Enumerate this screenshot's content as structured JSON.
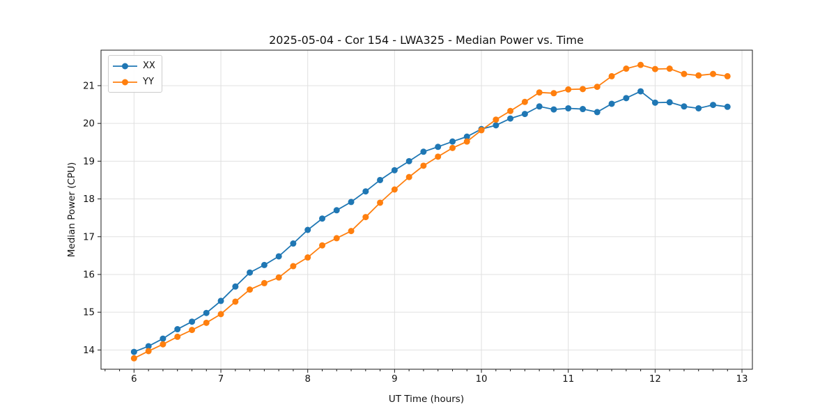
{
  "chart_data": {
    "type": "line",
    "title": "2025-05-04 - Cor 154 - LWA325 - Median Power vs. Time",
    "xlabel": "UT Time (hours)",
    "ylabel": "Median Power (CPU)",
    "grid": true,
    "legend_position": "upper left",
    "marker": "circle",
    "xlim": [
      5.62,
      13.12
    ],
    "ylim": [
      13.49,
      21.94
    ],
    "xticks": [
      6,
      7,
      8,
      9,
      10,
      11,
      12,
      13
    ],
    "yticks": [
      14,
      15,
      16,
      17,
      18,
      19,
      20,
      21
    ],
    "x_minor_step": 0.166667,
    "x": [
      6.0,
      6.167,
      6.333,
      6.5,
      6.667,
      6.833,
      7.0,
      7.167,
      7.333,
      7.5,
      7.667,
      7.833,
      8.0,
      8.167,
      8.333,
      8.5,
      8.667,
      8.833,
      9.0,
      9.167,
      9.333,
      9.5,
      9.667,
      9.833,
      10.0,
      10.167,
      10.333,
      10.5,
      10.667,
      10.833,
      11.0,
      11.167,
      11.333,
      11.5,
      11.667,
      11.833,
      12.0,
      12.167,
      12.333,
      12.5,
      12.667,
      12.833
    ],
    "series": [
      {
        "name": "XX",
        "color": "#1f77b4",
        "values": [
          13.95,
          14.1,
          14.3,
          14.55,
          14.75,
          14.98,
          15.3,
          15.68,
          16.05,
          16.25,
          16.48,
          16.82,
          17.18,
          17.48,
          17.7,
          17.92,
          18.2,
          18.5,
          18.76,
          19.0,
          19.25,
          19.38,
          19.52,
          19.65,
          19.85,
          19.95,
          20.13,
          20.25,
          20.45,
          20.37,
          20.4,
          20.38,
          20.3,
          20.52,
          20.67,
          20.85,
          20.55,
          20.56,
          20.45,
          20.4,
          20.49,
          20.44
        ]
      },
      {
        "name": "YY",
        "color": "#ff7f0e",
        "values": [
          13.78,
          13.97,
          14.15,
          14.35,
          14.53,
          14.72,
          14.95,
          15.28,
          15.6,
          15.77,
          15.92,
          16.22,
          16.45,
          16.77,
          16.96,
          17.15,
          17.52,
          17.9,
          18.25,
          18.58,
          18.88,
          19.12,
          19.35,
          19.52,
          19.82,
          20.1,
          20.33,
          20.57,
          20.82,
          20.8,
          20.9,
          20.91,
          20.97,
          21.25,
          21.45,
          21.55,
          21.44,
          21.45,
          21.31,
          21.27,
          21.31,
          21.25
        ]
      }
    ]
  }
}
